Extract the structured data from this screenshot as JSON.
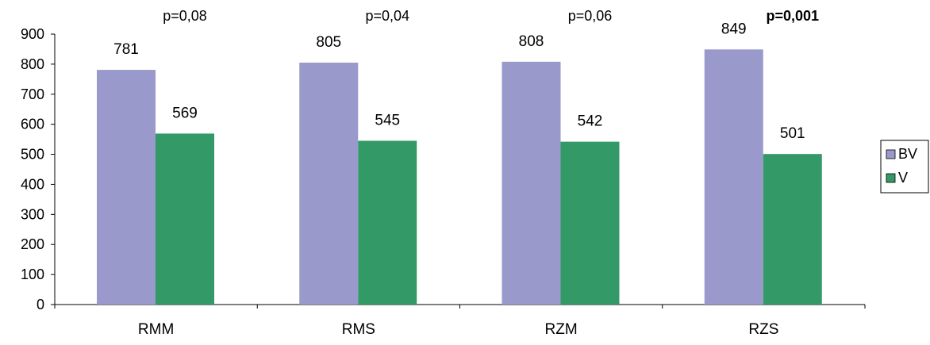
{
  "chart_data": {
    "type": "bar",
    "categories": [
      "RMM",
      "RMS",
      "RZM",
      "RZS"
    ],
    "series": [
      {
        "name": "BV",
        "values": [
          781,
          805,
          808,
          849
        ],
        "color": "#9999cc"
      },
      {
        "name": "V",
        "values": [
          569,
          545,
          542,
          501
        ],
        "color": "#339966"
      }
    ],
    "annotations": [
      {
        "text": "p=0,08",
        "bold": false
      },
      {
        "text": "p=0,04",
        "bold": false
      },
      {
        "text": "p=0,06",
        "bold": false
      },
      {
        "text": "p=0,001",
        "bold": true
      }
    ],
    "title": "",
    "xlabel": "",
    "ylabel": "",
    "ylim": [
      0,
      900
    ],
    "yticks": [
      0,
      100,
      200,
      300,
      400,
      500,
      600,
      700,
      800,
      900
    ],
    "grid": false,
    "legend_position": "right"
  }
}
